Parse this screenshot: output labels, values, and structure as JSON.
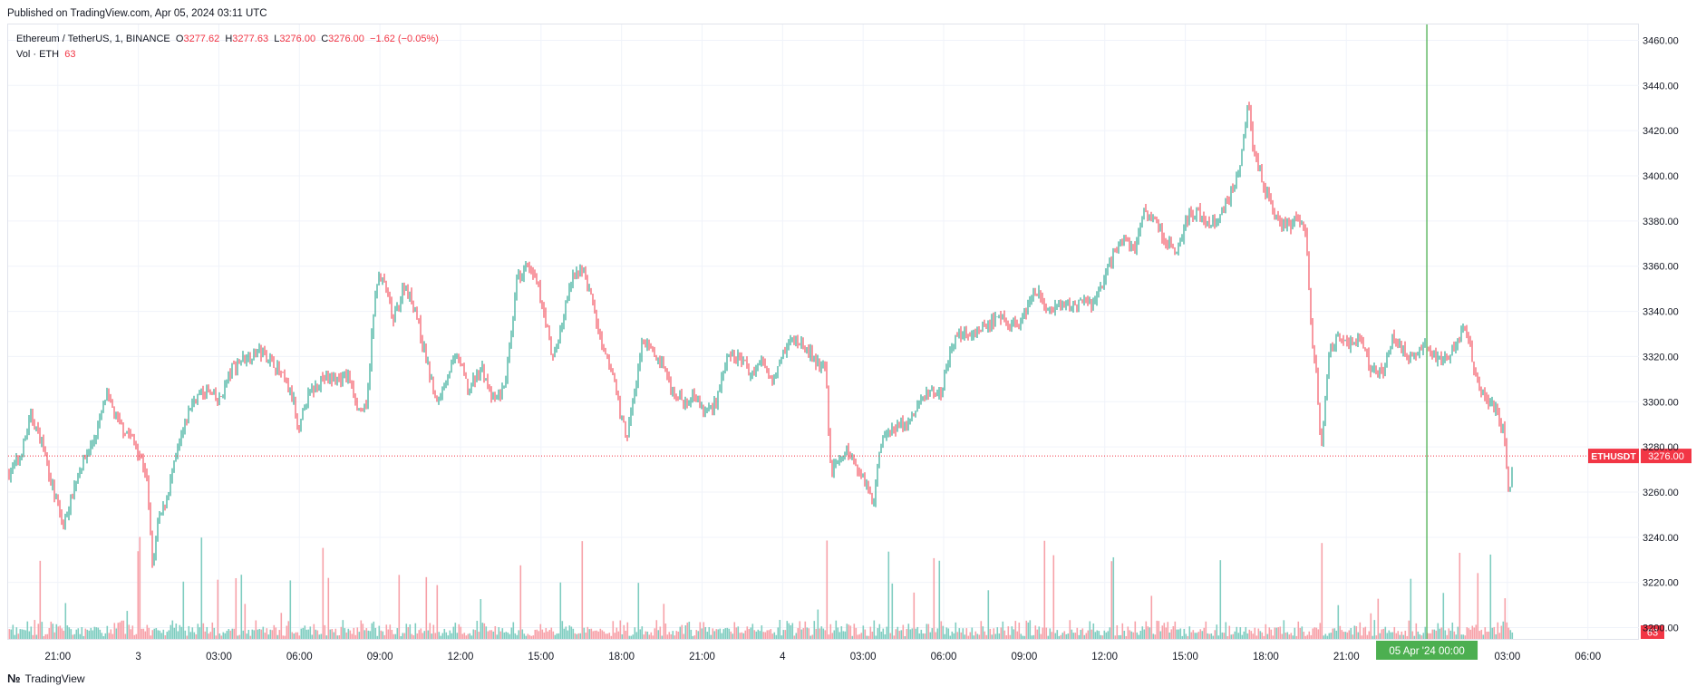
{
  "header": {
    "published": "Published on TradingView.com, Apr 05, 2024 03:11 UTC"
  },
  "legend": {
    "symbol": "Ethereum / TetherUS, 1, BINANCE",
    "o_label": "O",
    "o_value": "3277.62",
    "h_label": "H",
    "h_value": "3277.63",
    "l_label": "L",
    "l_value": "3276.00",
    "c_label": "C",
    "c_value": "3276.00",
    "change": "−1.62 (−0.05%)",
    "vol_label": "Vol · ETH",
    "vol_value": "63"
  },
  "price_tag": {
    "symbol": "ETHUSDT",
    "value": "3276.00"
  },
  "volume_tag": "63",
  "crosshair_label": "05 Apr '24   00:00",
  "footer": {
    "logo": "№",
    "brand": "TradingView"
  },
  "colors": {
    "up": "#089981",
    "down": "#f23645",
    "vol_up": "#7fcdc0",
    "vol_down": "#f7a1a8",
    "crosshair": "#4caf50",
    "grid": "#f0f3fa",
    "axis_text": "#131722"
  },
  "chart_data": {
    "type": "candlestick",
    "interval": "1 minute",
    "symbol": "ETHUSDT",
    "y_axis_side": "right",
    "ylim": [
      3195,
      3467
    ],
    "y_ticks": [
      3200,
      3220,
      3240,
      3260,
      3280,
      3300,
      3320,
      3340,
      3360,
      3380,
      3400,
      3420,
      3440,
      3460
    ],
    "x_ticks": [
      "21:00",
      "3",
      "03:00",
      "06:00",
      "09:00",
      "12:00",
      "15:00",
      "18:00",
      "21:00",
      "4",
      "03:00",
      "06:00",
      "09:00",
      "12:00",
      "15:00",
      "18:00",
      "21:00",
      "03:00",
      "06:00"
    ],
    "x_tick_hours": [
      21,
      24,
      27,
      30,
      33,
      36,
      39,
      42,
      45,
      48,
      51,
      54,
      57,
      60,
      63,
      66,
      69,
      75,
      78
    ],
    "x_range_hours": [
      19.15,
      79.9
    ],
    "last_data_hour": 75.2,
    "crosshair_hour": 72,
    "last_price": 3276.0,
    "price_path": [
      [
        19.15,
        3268
      ],
      [
        19.6,
        3276
      ],
      [
        20.0,
        3294
      ],
      [
        20.4,
        3282
      ],
      [
        20.8,
        3262
      ],
      [
        21.2,
        3245
      ],
      [
        21.8,
        3270
      ],
      [
        22.4,
        3285
      ],
      [
        22.8,
        3303
      ],
      [
        23.3,
        3290
      ],
      [
        23.7,
        3285
      ],
      [
        24.0,
        3278
      ],
      [
        24.3,
        3268
      ],
      [
        24.55,
        3224
      ],
      [
        24.7,
        3245
      ],
      [
        25.0,
        3255
      ],
      [
        25.5,
        3280
      ],
      [
        26.0,
        3300
      ],
      [
        26.5,
        3305
      ],
      [
        27.0,
        3300
      ],
      [
        27.5,
        3315
      ],
      [
        28.0,
        3320
      ],
      [
        28.5,
        3322
      ],
      [
        29.0,
        3318
      ],
      [
        29.4,
        3310
      ],
      [
        29.8,
        3300
      ],
      [
        29.95,
        3283
      ],
      [
        30.2,
        3300
      ],
      [
        30.8,
        3310
      ],
      [
        31.4,
        3310
      ],
      [
        31.8,
        3312
      ],
      [
        32.2,
        3297
      ],
      [
        32.5,
        3296
      ],
      [
        32.7,
        3330
      ],
      [
        32.9,
        3355
      ],
      [
        33.2,
        3352
      ],
      [
        33.5,
        3335
      ],
      [
        33.9,
        3352
      ],
      [
        34.3,
        3342
      ],
      [
        34.6,
        3325
      ],
      [
        34.9,
        3310
      ],
      [
        35.1,
        3298
      ],
      [
        35.5,
        3312
      ],
      [
        35.9,
        3320
      ],
      [
        36.3,
        3305
      ],
      [
        36.8,
        3315
      ],
      [
        37.2,
        3300
      ],
      [
        37.6,
        3305
      ],
      [
        37.9,
        3328
      ],
      [
        38.1,
        3355
      ],
      [
        38.5,
        3360
      ],
      [
        38.9,
        3350
      ],
      [
        39.2,
        3335
      ],
      [
        39.4,
        3318
      ],
      [
        39.7,
        3330
      ],
      [
        40.1,
        3352
      ],
      [
        40.5,
        3360
      ],
      [
        40.9,
        3345
      ],
      [
        41.3,
        3322
      ],
      [
        41.7,
        3312
      ],
      [
        42.0,
        3292
      ],
      [
        42.2,
        3285
      ],
      [
        42.5,
        3305
      ],
      [
        42.8,
        3328
      ],
      [
        43.2,
        3320
      ],
      [
        43.5,
        3318
      ],
      [
        43.9,
        3305
      ],
      [
        44.3,
        3300
      ],
      [
        44.7,
        3303
      ],
      [
        45.1,
        3295
      ],
      [
        45.5,
        3300
      ],
      [
        45.9,
        3318
      ],
      [
        46.4,
        3320
      ],
      [
        46.8,
        3312
      ],
      [
        47.2,
        3318
      ],
      [
        47.6,
        3310
      ],
      [
        48.0,
        3322
      ],
      [
        48.4,
        3328
      ],
      [
        48.8,
        3325
      ],
      [
        49.2,
        3318
      ],
      [
        49.6,
        3315
      ],
      [
        49.8,
        3268
      ],
      [
        50.1,
        3275
      ],
      [
        50.5,
        3278
      ],
      [
        50.9,
        3268
      ],
      [
        51.2,
        3262
      ],
      [
        51.4,
        3255
      ],
      [
        51.6,
        3280
      ],
      [
        51.9,
        3287
      ],
      [
        52.3,
        3290
      ],
      [
        52.7,
        3290
      ],
      [
        53.1,
        3300
      ],
      [
        53.5,
        3305
      ],
      [
        53.9,
        3305
      ],
      [
        54.2,
        3320
      ],
      [
        54.5,
        3330
      ],
      [
        54.9,
        3330
      ],
      [
        55.3,
        3332
      ],
      [
        55.7,
        3335
      ],
      [
        56.1,
        3336
      ],
      [
        56.5,
        3334
      ],
      [
        56.9,
        3335
      ],
      [
        57.2,
        3345
      ],
      [
        57.5,
        3348
      ],
      [
        57.9,
        3340
      ],
      [
        58.3,
        3341
      ],
      [
        58.7,
        3342
      ],
      [
        59.1,
        3345
      ],
      [
        59.5,
        3342
      ],
      [
        59.9,
        3352
      ],
      [
        60.3,
        3365
      ],
      [
        60.7,
        3372
      ],
      [
        61.1,
        3368
      ],
      [
        61.5,
        3385
      ],
      [
        61.9,
        3380
      ],
      [
        62.3,
        3370
      ],
      [
        62.7,
        3368
      ],
      [
        63.1,
        3382
      ],
      [
        63.4,
        3385
      ],
      [
        63.8,
        3378
      ],
      [
        64.2,
        3380
      ],
      [
        64.6,
        3390
      ],
      [
        65.0,
        3402
      ],
      [
        65.2,
        3420
      ],
      [
        65.35,
        3437
      ],
      [
        65.5,
        3415
      ],
      [
        65.8,
        3400
      ],
      [
        66.1,
        3390
      ],
      [
        66.5,
        3380
      ],
      [
        66.9,
        3378
      ],
      [
        67.2,
        3383
      ],
      [
        67.5,
        3372
      ],
      [
        67.7,
        3330
      ],
      [
        67.9,
        3310
      ],
      [
        68.0,
        3285
      ],
      [
        68.1,
        3280
      ],
      [
        68.2,
        3300
      ],
      [
        68.35,
        3320
      ],
      [
        68.7,
        3330
      ],
      [
        69.1,
        3325
      ],
      [
        69.5,
        3328
      ],
      [
        69.9,
        3315
      ],
      [
        70.3,
        3312
      ],
      [
        70.7,
        3328
      ],
      [
        71.1,
        3322
      ],
      [
        71.5,
        3320
      ],
      [
        71.9,
        3325
      ],
      [
        72.3,
        3320
      ],
      [
        72.7,
        3318
      ],
      [
        73.1,
        3326
      ],
      [
        73.4,
        3335
      ],
      [
        73.7,
        3318
      ],
      [
        74.0,
        3305
      ],
      [
        74.3,
        3300
      ],
      [
        74.6,
        3295
      ],
      [
        74.9,
        3285
      ],
      [
        75.0,
        3265
      ],
      [
        75.1,
        3262
      ],
      [
        75.2,
        3276
      ]
    ]
  }
}
